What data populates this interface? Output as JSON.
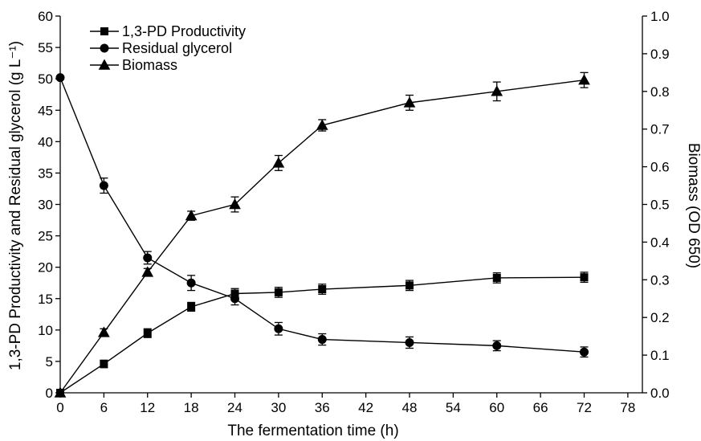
{
  "chart_data": {
    "type": "line",
    "title": "",
    "xlabel": "The fermentation time (h)",
    "ylabel_left": "1,3-PD Productivity and Residual glycerol (g L⁻¹)",
    "ylabel_right": "Biomass (OD 650)",
    "xlim": [
      0,
      80
    ],
    "ylim_left": [
      0,
      60
    ],
    "ylim_right": [
      0,
      1.0
    ],
    "x_ticks": [
      "0",
      "6",
      "12",
      "18",
      "24",
      "30",
      "36",
      "42",
      "48",
      "54",
      "60",
      "66",
      "72",
      "78"
    ],
    "y_left_ticks": [
      "0",
      "5",
      "10",
      "15",
      "20",
      "25",
      "30",
      "35",
      "40",
      "45",
      "50",
      "55",
      "60"
    ],
    "y_right_ticks": [
      "0.0",
      "0.1",
      "0.2",
      "0.3",
      "0.4",
      "0.5",
      "0.6",
      "0.7",
      "0.8",
      "0.9",
      "1.0"
    ],
    "grid": false,
    "legend_position": "top-left",
    "series": [
      {
        "name": "1,3-PD Productivity",
        "marker": "square",
        "axis": "left",
        "x": [
          0,
          6,
          12,
          18,
          24,
          30,
          36,
          48,
          60,
          72
        ],
        "y": [
          0,
          4.6,
          9.5,
          13.7,
          15.8,
          16.0,
          16.5,
          17.1,
          18.3,
          18.4
        ],
        "error": [
          0,
          0.6,
          0.7,
          0.7,
          0.8,
          0.8,
          0.8,
          0.8,
          0.8,
          0.8
        ]
      },
      {
        "name": "Residual glycerol",
        "marker": "circle",
        "axis": "left",
        "x": [
          0,
          6,
          12,
          18,
          24,
          30,
          36,
          48,
          60,
          72
        ],
        "y": [
          50.2,
          33.0,
          21.5,
          17.5,
          15.0,
          10.2,
          8.5,
          8.0,
          7.5,
          6.5
        ],
        "error": [
          0,
          1.2,
          1.0,
          1.2,
          1.0,
          1.0,
          0.9,
          0.9,
          0.8,
          0.8
        ]
      },
      {
        "name": "Biomass",
        "marker": "triangle",
        "axis": "right",
        "x": [
          0,
          6,
          12,
          18,
          24,
          30,
          36,
          48,
          60,
          72
        ],
        "y": [
          0,
          0.16,
          0.32,
          0.47,
          0.5,
          0.61,
          0.71,
          0.77,
          0.8,
          0.83
        ],
        "error": [
          0,
          0.01,
          0.01,
          0.012,
          0.02,
          0.02,
          0.015,
          0.02,
          0.025,
          0.02
        ]
      }
    ]
  }
}
